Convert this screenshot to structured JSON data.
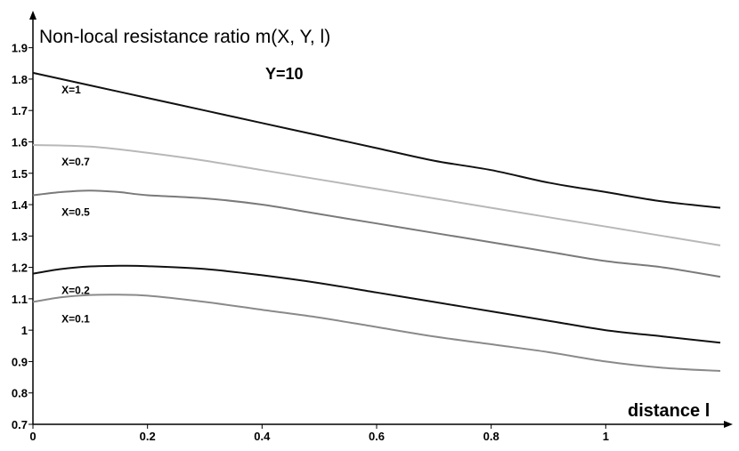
{
  "chart_data": {
    "type": "line",
    "ylabel": "Non-local resistance ratio m(X, Y, l)",
    "xlabel": "distance l",
    "annotation": "Y=10",
    "xlim": [
      0,
      1.2
    ],
    "ylim": [
      0.7,
      1.95
    ],
    "x_ticks": [
      "0",
      "0.2",
      "0.4",
      "0.6",
      "0.8",
      "1"
    ],
    "y_ticks": [
      "0.7",
      "0.8",
      "0.9",
      "1",
      "1.1",
      "1.2",
      "1.3",
      "1.4",
      "1.5",
      "1.6",
      "1.7",
      "1.8",
      "1.9"
    ],
    "grid": false,
    "series": [
      {
        "name": "X=1",
        "color": "#111111",
        "x": [
          0,
          0.1,
          0.2,
          0.3,
          0.4,
          0.5,
          0.6,
          0.7,
          0.8,
          0.9,
          1.0,
          1.1,
          1.2
        ],
        "y": [
          1.82,
          1.78,
          1.74,
          1.7,
          1.66,
          1.62,
          1.58,
          1.54,
          1.51,
          1.47,
          1.44,
          1.41,
          1.39
        ]
      },
      {
        "name": "X=0.7",
        "color": "#b8b8b8",
        "x": [
          0,
          0.1,
          0.2,
          0.3,
          0.4,
          0.5,
          0.6,
          0.7,
          0.8,
          0.9,
          1.0,
          1.1,
          1.2
        ],
        "y": [
          1.59,
          1.585,
          1.565,
          1.54,
          1.51,
          1.48,
          1.45,
          1.42,
          1.39,
          1.36,
          1.33,
          1.3,
          1.27
        ]
      },
      {
        "name": "X=0.5",
        "color": "#7a7a7a",
        "x": [
          0,
          0.05,
          0.1,
          0.15,
          0.2,
          0.3,
          0.4,
          0.5,
          0.6,
          0.7,
          0.8,
          0.9,
          1.0,
          1.1,
          1.2
        ],
        "y": [
          1.43,
          1.44,
          1.445,
          1.44,
          1.43,
          1.42,
          1.4,
          1.37,
          1.34,
          1.31,
          1.28,
          1.25,
          1.22,
          1.2,
          1.17
        ]
      },
      {
        "name": "X=0.2",
        "color": "#111111",
        "x": [
          0,
          0.05,
          0.1,
          0.15,
          0.2,
          0.3,
          0.4,
          0.5,
          0.6,
          0.7,
          0.8,
          0.9,
          1.0,
          1.1,
          1.2
        ],
        "y": [
          1.18,
          1.195,
          1.203,
          1.205,
          1.204,
          1.195,
          1.175,
          1.15,
          1.12,
          1.09,
          1.06,
          1.03,
          1.0,
          0.98,
          0.96
        ]
      },
      {
        "name": "X=0.1",
        "color": "#8a8a8a",
        "x": [
          0,
          0.05,
          0.1,
          0.15,
          0.2,
          0.3,
          0.4,
          0.5,
          0.6,
          0.7,
          0.8,
          0.9,
          1.0,
          1.1,
          1.2
        ],
        "y": [
          1.09,
          1.105,
          1.112,
          1.113,
          1.11,
          1.09,
          1.065,
          1.04,
          1.01,
          0.98,
          0.955,
          0.93,
          0.9,
          0.88,
          0.87
        ]
      }
    ]
  }
}
